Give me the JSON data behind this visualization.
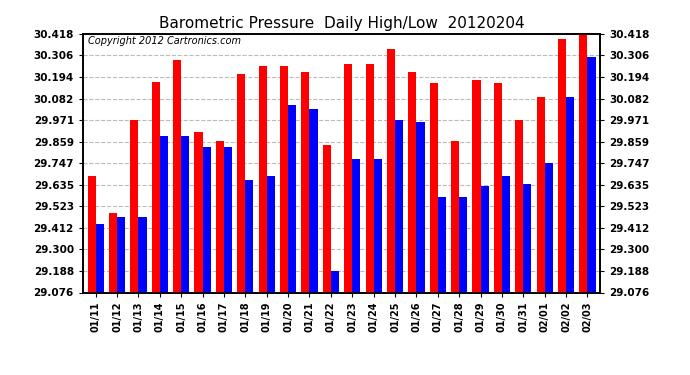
{
  "title": "Barometric Pressure  Daily High/Low  20120204",
  "copyright": "Copyright 2012 Cartronics.com",
  "dates": [
    "01/11",
    "01/12",
    "01/13",
    "01/14",
    "01/15",
    "01/16",
    "01/17",
    "01/18",
    "01/19",
    "01/20",
    "01/21",
    "01/22",
    "01/23",
    "01/24",
    "01/25",
    "01/26",
    "01/27",
    "01/28",
    "01/29",
    "01/30",
    "01/31",
    "02/01",
    "02/02",
    "02/03"
  ],
  "highs": [
    29.68,
    29.49,
    29.97,
    30.17,
    30.28,
    29.91,
    29.86,
    30.21,
    30.25,
    30.25,
    30.22,
    29.84,
    30.26,
    30.26,
    30.34,
    30.22,
    30.16,
    29.86,
    30.18,
    30.16,
    29.97,
    30.09,
    30.39,
    30.42
  ],
  "lows": [
    29.43,
    29.47,
    29.47,
    29.89,
    29.89,
    29.83,
    29.83,
    29.66,
    29.68,
    30.05,
    30.03,
    29.19,
    29.77,
    29.77,
    29.97,
    29.96,
    29.57,
    29.57,
    29.63,
    29.68,
    29.64,
    29.75,
    30.09,
    30.3
  ],
  "high_color": "#ff0000",
  "low_color": "#0000ff",
  "bg_color": "#ffffff",
  "grid_color": "#bbbbbb",
  "yticks": [
    29.076,
    29.188,
    29.3,
    29.412,
    29.523,
    29.635,
    29.747,
    29.859,
    29.971,
    30.082,
    30.194,
    30.306,
    30.418
  ],
  "ymin": 29.076,
  "ymax": 30.418,
  "bar_width": 0.38,
  "title_fontsize": 11
}
